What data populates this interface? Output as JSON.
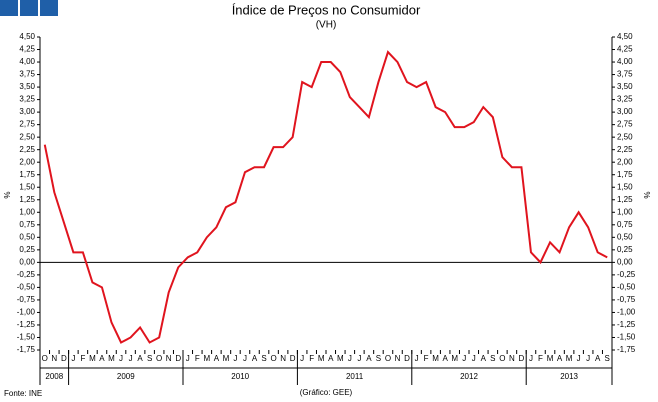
{
  "chart_data": {
    "type": "line",
    "title": "Índice de Preços no Consumidor",
    "subtitle": "(VH)",
    "y_label": "%",
    "source": "Fonte: INE",
    "credit": "(Gráfico: GEE)",
    "categories": [
      "O",
      "N",
      "D",
      "J",
      "F",
      "M",
      "A",
      "M",
      "J",
      "J",
      "A",
      "S",
      "O",
      "N",
      "D",
      "J",
      "F",
      "M",
      "A",
      "M",
      "J",
      "J",
      "A",
      "S",
      "O",
      "N",
      "D",
      "J",
      "F",
      "M",
      "A",
      "M",
      "J",
      "J",
      "A",
      "S",
      "O",
      "N",
      "D",
      "J",
      "F",
      "M",
      "A",
      "M",
      "J",
      "J",
      "A",
      "S",
      "O",
      "N",
      "D",
      "J",
      "F",
      "M",
      "A",
      "M",
      "J",
      "J",
      "A",
      "S"
    ],
    "years": [
      "2008",
      "2009",
      "2010",
      "2011",
      "2012",
      "2013"
    ],
    "series": [
      {
        "color": "#e0141e",
        "values": [
          2.35,
          1.4,
          0.8,
          0.2,
          0.2,
          -0.4,
          -0.5,
          -1.2,
          -1.6,
          -1.5,
          -1.3,
          -1.6,
          -1.5,
          -0.6,
          -0.1,
          0.1,
          0.2,
          0.5,
          0.7,
          1.1,
          1.2,
          1.8,
          1.9,
          1.9,
          2.3,
          2.3,
          2.5,
          3.6,
          3.5,
          4.0,
          4.0,
          3.8,
          3.3,
          3.1,
          2.9,
          3.6,
          4.2,
          4.0,
          3.6,
          3.5,
          3.6,
          3.1,
          3.0,
          2.7,
          2.7,
          2.8,
          3.1,
          2.9,
          2.1,
          1.9,
          1.9,
          0.2,
          0.0,
          0.4,
          0.2,
          0.7,
          1.0,
          0.7,
          0.2,
          0.1
        ]
      }
    ],
    "ylim": [
      -1.75,
      4.5
    ],
    "yticks": [
      {
        "value": -1.75,
        "label": "-1,75"
      },
      {
        "value": -1.5,
        "label": "-1,50"
      },
      {
        "value": -1.25,
        "label": "-1,25"
      },
      {
        "value": -1,
        "label": "-1,00"
      },
      {
        "value": -0.75,
        "label": "-0,75"
      },
      {
        "value": -0.5,
        "label": "-0,50"
      },
      {
        "value": -0.25,
        "label": "-0,25"
      },
      {
        "value": 0,
        "label": "0,00"
      },
      {
        "value": 0.25,
        "label": "0,25"
      },
      {
        "value": 0.5,
        "label": "0,50"
      },
      {
        "value": 0.75,
        "label": "0,75"
      },
      {
        "value": 1,
        "label": "1,00"
      },
      {
        "value": 1.25,
        "label": "1,25"
      },
      {
        "value": 1.5,
        "label": "1,50"
      },
      {
        "value": 1.75,
        "label": "1,75"
      },
      {
        "value": 2,
        "label": "2,00"
      },
      {
        "value": 2.25,
        "label": "2,25"
      },
      {
        "value": 2.5,
        "label": "2,50"
      },
      {
        "value": 2.75,
        "label": "2,75"
      },
      {
        "value": 3,
        "label": "3,00"
      },
      {
        "value": 3.25,
        "label": "3,25"
      },
      {
        "value": 3.5,
        "label": "3,50"
      },
      {
        "value": 3.75,
        "label": "3,75"
      },
      {
        "value": 4,
        "label": "4,00"
      },
      {
        "value": 4.25,
        "label": "4,25"
      },
      {
        "value": 4.5,
        "label": "4,50"
      }
    ]
  }
}
